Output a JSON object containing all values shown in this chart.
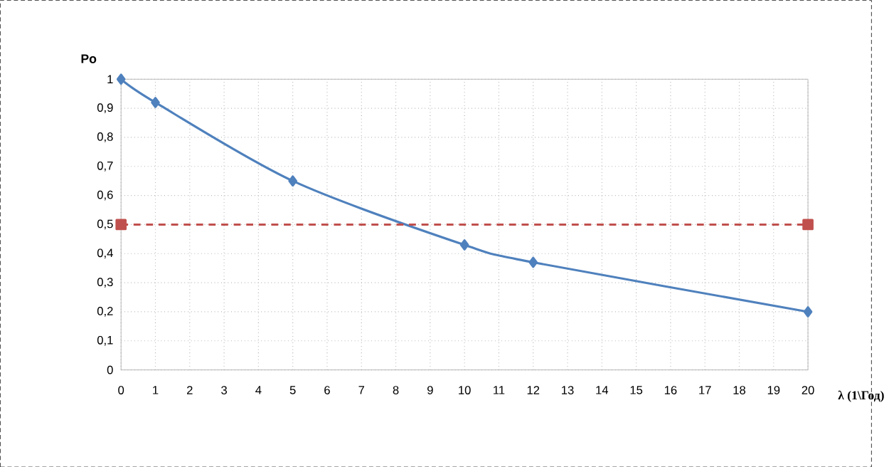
{
  "chart_data": {
    "type": "line",
    "xlabel": "λ (1\\Год)",
    "ylabel": "Po",
    "xlim": [
      0,
      20
    ],
    "xticks": [
      0,
      1,
      2,
      3,
      4,
      5,
      6,
      7,
      8,
      9,
      10,
      11,
      12,
      13,
      14,
      15,
      16,
      17,
      18,
      19,
      20
    ],
    "ylim": [
      0,
      1
    ],
    "yticks": [
      0,
      {
        "value": 0.1,
        "label": "0,1"
      },
      {
        "value": 0.2,
        "label": "0,2"
      },
      {
        "value": 0.3,
        "label": "0,3"
      },
      {
        "value": 0.4,
        "label": "0,4"
      },
      {
        "value": 0.5,
        "label": "0,5"
      },
      {
        "value": 0.6,
        "label": "0,6"
      },
      {
        "value": 0.7,
        "label": "0,7"
      },
      {
        "value": 0.8,
        "label": "0,8"
      },
      {
        "value": 0.9,
        "label": "0,9"
      },
      1
    ],
    "grid": true,
    "series": [
      {
        "color": "#4f81bd",
        "x": [
          0,
          1,
          5,
          10,
          12,
          20
        ],
        "values": [
          1,
          0.92,
          0.65,
          0.43,
          0.37,
          0.2
        ],
        "marker": "diamond",
        "line_style": "solid"
      },
      {
        "color": "#c0504d",
        "x": [
          0,
          20
        ],
        "values": [
          0.5,
          0.5
        ],
        "marker": "square",
        "line_style": "dashed"
      }
    ]
  }
}
